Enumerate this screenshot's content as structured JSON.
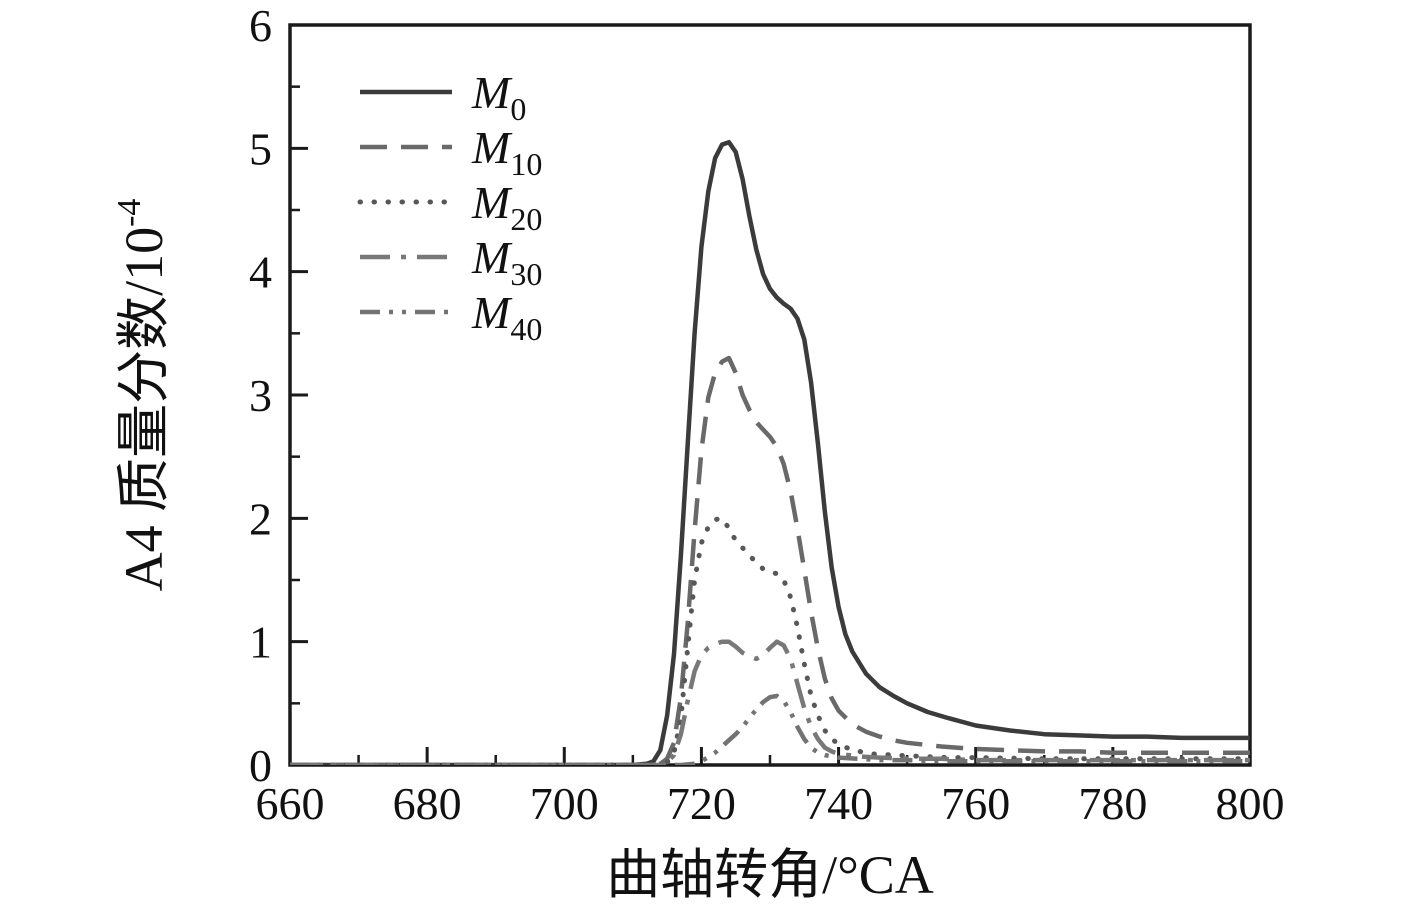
{
  "figure": {
    "background": "#ffffff",
    "axis_color": "#1a1a1a",
    "tick_label_color": "#111111"
  },
  "chart_data": {
    "type": "line",
    "title": "",
    "xlabel": "曲轴转角/°CA",
    "ylabel": "A4 质量分数/10⁻⁴",
    "ylabel_main": "A4 质量分数/10",
    "ylabel_exponent": "-4",
    "xlim": [
      660,
      800
    ],
    "ylim": [
      0,
      6
    ],
    "x_major_ticks": [
      660,
      680,
      700,
      720,
      740,
      760,
      780,
      800
    ],
    "x_minor_ticks": [
      670,
      690,
      710,
      730,
      750,
      770,
      790
    ],
    "y_major_ticks": [
      0,
      1,
      2,
      3,
      4,
      5,
      6
    ],
    "y_minor_ticks": [
      0.5,
      1.5,
      2.5,
      3.5,
      4.5,
      5.5
    ],
    "grid": false,
    "legend_position": "upper-left",
    "series": [
      {
        "name": "M0",
        "legend_main": "M",
        "legend_sub": "0",
        "style": "solid",
        "color": "#3b3b3b",
        "width": 4.5,
        "points": [
          [
            660,
            0
          ],
          [
            705,
            0
          ],
          [
            710,
            0
          ],
          [
            712,
            0.01
          ],
          [
            713,
            0.03
          ],
          [
            714,
            0.12
          ],
          [
            715,
            0.4
          ],
          [
            716,
            0.9
          ],
          [
            717,
            1.7
          ],
          [
            718,
            2.6
          ],
          [
            719,
            3.5
          ],
          [
            720,
            4.2
          ],
          [
            721,
            4.65
          ],
          [
            722,
            4.92
          ],
          [
            723,
            5.03
          ],
          [
            724,
            5.05
          ],
          [
            725,
            4.97
          ],
          [
            726,
            4.75
          ],
          [
            727,
            4.45
          ],
          [
            728,
            4.18
          ],
          [
            729,
            3.98
          ],
          [
            730,
            3.86
          ],
          [
            731,
            3.79
          ],
          [
            732,
            3.74
          ],
          [
            733,
            3.7
          ],
          [
            734,
            3.62
          ],
          [
            735,
            3.45
          ],
          [
            736,
            3.1
          ],
          [
            737,
            2.6
          ],
          [
            738,
            2.05
          ],
          [
            739,
            1.6
          ],
          [
            740,
            1.28
          ],
          [
            741,
            1.06
          ],
          [
            742,
            0.92
          ],
          [
            744,
            0.74
          ],
          [
            746,
            0.63
          ],
          [
            748,
            0.56
          ],
          [
            750,
            0.5
          ],
          [
            753,
            0.43
          ],
          [
            756,
            0.38
          ],
          [
            760,
            0.32
          ],
          [
            765,
            0.28
          ],
          [
            770,
            0.25
          ],
          [
            775,
            0.24
          ],
          [
            780,
            0.23
          ],
          [
            785,
            0.23
          ],
          [
            790,
            0.22
          ],
          [
            795,
            0.22
          ],
          [
            800,
            0.22
          ]
        ]
      },
      {
        "name": "M10",
        "legend_main": "M",
        "legend_sub": "10",
        "style": "dashed",
        "color": "#696969",
        "width": 4.5,
        "points": [
          [
            660,
            0
          ],
          [
            712,
            0
          ],
          [
            714,
            0.01
          ],
          [
            715,
            0.05
          ],
          [
            716,
            0.18
          ],
          [
            717,
            0.55
          ],
          [
            718,
            1.15
          ],
          [
            719,
            1.9
          ],
          [
            720,
            2.55
          ],
          [
            721,
            2.98
          ],
          [
            722,
            3.18
          ],
          [
            723,
            3.27
          ],
          [
            724,
            3.3
          ],
          [
            725,
            3.18
          ],
          [
            726,
            3.0
          ],
          [
            727,
            2.88
          ],
          [
            728,
            2.78
          ],
          [
            729,
            2.72
          ],
          [
            730,
            2.66
          ],
          [
            731,
            2.58
          ],
          [
            732,
            2.44
          ],
          [
            733,
            2.22
          ],
          [
            734,
            1.92
          ],
          [
            735,
            1.58
          ],
          [
            736,
            1.24
          ],
          [
            737,
            0.94
          ],
          [
            738,
            0.7
          ],
          [
            739,
            0.54
          ],
          [
            740,
            0.44
          ],
          [
            742,
            0.33
          ],
          [
            744,
            0.27
          ],
          [
            746,
            0.23
          ],
          [
            748,
            0.2
          ],
          [
            750,
            0.18
          ],
          [
            755,
            0.15
          ],
          [
            760,
            0.13
          ],
          [
            765,
            0.12
          ],
          [
            770,
            0.11
          ],
          [
            775,
            0.11
          ],
          [
            780,
            0.1
          ],
          [
            790,
            0.1
          ],
          [
            800,
            0.1
          ]
        ]
      },
      {
        "name": "M20",
        "legend_main": "M",
        "legend_sub": "20",
        "style": "dotted",
        "color": "#585858",
        "width": 5,
        "points": [
          [
            660,
            0
          ],
          [
            713,
            0
          ],
          [
            715,
            0.02
          ],
          [
            716,
            0.1
          ],
          [
            717,
            0.38
          ],
          [
            718,
            0.95
          ],
          [
            719,
            1.5
          ],
          [
            720,
            1.8
          ],
          [
            721,
            1.93
          ],
          [
            722,
            1.99
          ],
          [
            723,
            2.0
          ],
          [
            724,
            1.92
          ],
          [
            725,
            1.82
          ],
          [
            726,
            1.76
          ],
          [
            727,
            1.7
          ],
          [
            728,
            1.64
          ],
          [
            729,
            1.59
          ],
          [
            730,
            1.57
          ],
          [
            731,
            1.55
          ],
          [
            732,
            1.5
          ],
          [
            733,
            1.36
          ],
          [
            734,
            1.12
          ],
          [
            735,
            0.82
          ],
          [
            736,
            0.56
          ],
          [
            737,
            0.4
          ],
          [
            738,
            0.28
          ],
          [
            739,
            0.21
          ],
          [
            740,
            0.17
          ],
          [
            742,
            0.12
          ],
          [
            745,
            0.09
          ],
          [
            748,
            0.08
          ],
          [
            752,
            0.07
          ],
          [
            756,
            0.06
          ],
          [
            760,
            0.06
          ],
          [
            770,
            0.05
          ],
          [
            780,
            0.05
          ],
          [
            790,
            0.05
          ],
          [
            800,
            0.05
          ]
        ]
      },
      {
        "name": "M30",
        "legend_main": "M",
        "legend_sub": "30",
        "style": "dashdot",
        "color": "#787878",
        "width": 4.5,
        "points": [
          [
            660,
            0
          ],
          [
            714,
            0
          ],
          [
            715,
            0.02
          ],
          [
            716,
            0.08
          ],
          [
            717,
            0.25
          ],
          [
            718,
            0.52
          ],
          [
            719,
            0.76
          ],
          [
            720,
            0.89
          ],
          [
            721,
            0.95
          ],
          [
            722,
            0.98
          ],
          [
            723,
            1.0
          ],
          [
            724,
            1.0
          ],
          [
            725,
            0.96
          ],
          [
            726,
            0.91
          ],
          [
            727,
            0.88
          ],
          [
            728,
            0.86
          ],
          [
            729,
            0.89
          ],
          [
            730,
            0.95
          ],
          [
            731,
            1.0
          ],
          [
            732,
            0.97
          ],
          [
            733,
            0.86
          ],
          [
            734,
            0.66
          ],
          [
            735,
            0.46
          ],
          [
            736,
            0.31
          ],
          [
            737,
            0.21
          ],
          [
            738,
            0.14
          ],
          [
            739,
            0.11
          ],
          [
            740,
            0.09
          ],
          [
            743,
            0.07
          ],
          [
            746,
            0.06
          ],
          [
            750,
            0.05
          ],
          [
            755,
            0.05
          ],
          [
            760,
            0.04
          ],
          [
            770,
            0.04
          ],
          [
            780,
            0.04
          ],
          [
            790,
            0.04
          ],
          [
            800,
            0.04
          ]
        ]
      },
      {
        "name": "M40",
        "legend_main": "M",
        "legend_sub": "40",
        "style": "dashdotdot",
        "color": "#737373",
        "width": 4.5,
        "points": [
          [
            660,
            0
          ],
          [
            717,
            0
          ],
          [
            719,
            0.01
          ],
          [
            720,
            0.03
          ],
          [
            722,
            0.1
          ],
          [
            724,
            0.2
          ],
          [
            725,
            0.25
          ],
          [
            726,
            0.31
          ],
          [
            727,
            0.38
          ],
          [
            728,
            0.45
          ],
          [
            729,
            0.51
          ],
          [
            730,
            0.55
          ],
          [
            731,
            0.56
          ],
          [
            732,
            0.52
          ],
          [
            733,
            0.43
          ],
          [
            734,
            0.31
          ],
          [
            735,
            0.21
          ],
          [
            736,
            0.14
          ],
          [
            737,
            0.1
          ],
          [
            738,
            0.08
          ],
          [
            740,
            0.06
          ],
          [
            743,
            0.05
          ],
          [
            746,
            0.04
          ],
          [
            750,
            0.04
          ],
          [
            755,
            0.03
          ],
          [
            760,
            0.03
          ],
          [
            770,
            0.03
          ],
          [
            780,
            0.03
          ],
          [
            790,
            0.03
          ],
          [
            800,
            0.03
          ]
        ]
      }
    ]
  }
}
